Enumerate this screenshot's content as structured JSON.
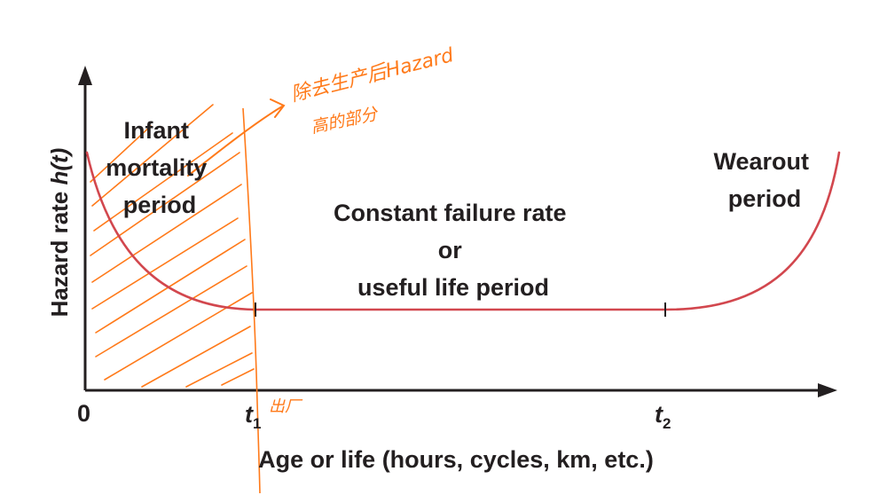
{
  "figure": {
    "y_axis_label_main": "Hazard rate ",
    "y_axis_label_func": "h(t)",
    "x_axis_label": "Age or life (hours, cycles, km, etc.)",
    "origin_label": "0",
    "t1_label": "t",
    "t1_sub": "1",
    "t2_label": "t",
    "t2_sub": "2",
    "region_infant": [
      "Infant",
      "mortality",
      "period"
    ],
    "region_constant": [
      "Constant failure rate",
      "or",
      "useful life period"
    ],
    "region_wearout": [
      "Wearout",
      "period"
    ]
  },
  "annotations": {
    "note_line1": "除去生产后Hazard",
    "note_line2": "高的部分",
    "t1_note": "出厂"
  },
  "colors": {
    "curve": "#d2474e",
    "axis": "#231f20",
    "text": "#231f20",
    "handwriting": "#ff7a1a"
  }
}
